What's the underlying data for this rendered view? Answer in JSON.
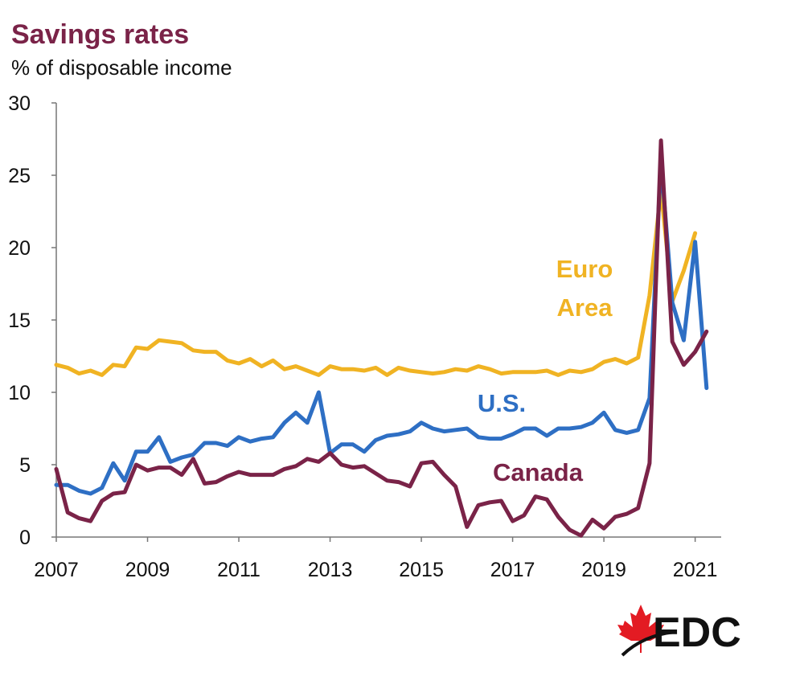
{
  "chart_data": {
    "type": "line",
    "title": "Savings rates",
    "subtitle": "% of disposable income",
    "xlabel": "",
    "ylabel": "% of disposable income",
    "xlim": [
      2007,
      2021.5
    ],
    "ylim": [
      0,
      30
    ],
    "y_ticks": [
      0,
      5,
      10,
      15,
      20,
      25,
      30
    ],
    "x_ticks": [
      2007,
      2009,
      2011,
      2013,
      2015,
      2017,
      2019,
      2021
    ],
    "grid": false,
    "legend": "inline labels",
    "series": [
      {
        "name": "Euro Area",
        "label_lines": [
          "Euro",
          "Area"
        ],
        "color": "#f0b323",
        "points": [
          [
            2007.0,
            11.9
          ],
          [
            2007.25,
            11.7
          ],
          [
            2007.5,
            11.3
          ],
          [
            2007.75,
            11.5
          ],
          [
            2008.0,
            11.2
          ],
          [
            2008.25,
            11.9
          ],
          [
            2008.5,
            11.8
          ],
          [
            2008.75,
            13.1
          ],
          [
            2009.0,
            13.0
          ],
          [
            2009.25,
            13.6
          ],
          [
            2009.5,
            13.5
          ],
          [
            2009.75,
            13.4
          ],
          [
            2010.0,
            12.9
          ],
          [
            2010.25,
            12.8
          ],
          [
            2010.5,
            12.8
          ],
          [
            2010.75,
            12.2
          ],
          [
            2011.0,
            12.0
          ],
          [
            2011.25,
            12.3
          ],
          [
            2011.5,
            11.8
          ],
          [
            2011.75,
            12.2
          ],
          [
            2012.0,
            11.6
          ],
          [
            2012.25,
            11.8
          ],
          [
            2012.5,
            11.5
          ],
          [
            2012.75,
            11.2
          ],
          [
            2013.0,
            11.8
          ],
          [
            2013.25,
            11.6
          ],
          [
            2013.5,
            11.6
          ],
          [
            2013.75,
            11.5
          ],
          [
            2014.0,
            11.7
          ],
          [
            2014.25,
            11.2
          ],
          [
            2014.5,
            11.7
          ],
          [
            2014.75,
            11.5
          ],
          [
            2015.0,
            11.4
          ],
          [
            2015.25,
            11.3
          ],
          [
            2015.5,
            11.4
          ],
          [
            2015.75,
            11.6
          ],
          [
            2016.0,
            11.5
          ],
          [
            2016.25,
            11.8
          ],
          [
            2016.5,
            11.6
          ],
          [
            2016.75,
            11.3
          ],
          [
            2017.0,
            11.4
          ],
          [
            2017.25,
            11.4
          ],
          [
            2017.5,
            11.4
          ],
          [
            2017.75,
            11.5
          ],
          [
            2018.0,
            11.2
          ],
          [
            2018.25,
            11.5
          ],
          [
            2018.5,
            11.4
          ],
          [
            2018.75,
            11.6
          ],
          [
            2019.0,
            12.1
          ],
          [
            2019.25,
            12.3
          ],
          [
            2019.5,
            12.0
          ],
          [
            2019.75,
            12.4
          ],
          [
            2020.0,
            16.7
          ],
          [
            2020.25,
            24.0
          ],
          [
            2020.5,
            16.3
          ],
          [
            2020.75,
            18.4
          ],
          [
            2021.0,
            21.0
          ]
        ]
      },
      {
        "name": "U.S.",
        "label_lines": [
          "U.S."
        ],
        "color": "#2e6fc4",
        "points": [
          [
            2007.0,
            3.6
          ],
          [
            2007.25,
            3.6
          ],
          [
            2007.5,
            3.2
          ],
          [
            2007.75,
            3.0
          ],
          [
            2008.0,
            3.4
          ],
          [
            2008.25,
            5.1
          ],
          [
            2008.5,
            3.9
          ],
          [
            2008.75,
            5.9
          ],
          [
            2009.0,
            5.9
          ],
          [
            2009.25,
            6.9
          ],
          [
            2009.5,
            5.2
          ],
          [
            2009.75,
            5.5
          ],
          [
            2010.0,
            5.7
          ],
          [
            2010.25,
            6.5
          ],
          [
            2010.5,
            6.5
          ],
          [
            2010.75,
            6.3
          ],
          [
            2011.0,
            6.9
          ],
          [
            2011.25,
            6.6
          ],
          [
            2011.5,
            6.8
          ],
          [
            2011.75,
            6.9
          ],
          [
            2012.0,
            7.9
          ],
          [
            2012.25,
            8.6
          ],
          [
            2012.5,
            7.9
          ],
          [
            2012.75,
            10.0
          ],
          [
            2013.0,
            5.8
          ],
          [
            2013.25,
            6.4
          ],
          [
            2013.5,
            6.4
          ],
          [
            2013.75,
            5.9
          ],
          [
            2014.0,
            6.7
          ],
          [
            2014.25,
            7.0
          ],
          [
            2014.5,
            7.1
          ],
          [
            2014.75,
            7.3
          ],
          [
            2015.0,
            7.9
          ],
          [
            2015.25,
            7.5
          ],
          [
            2015.5,
            7.3
          ],
          [
            2015.75,
            7.4
          ],
          [
            2016.0,
            7.5
          ],
          [
            2016.25,
            6.9
          ],
          [
            2016.5,
            6.8
          ],
          [
            2016.75,
            6.8
          ],
          [
            2017.0,
            7.1
          ],
          [
            2017.25,
            7.5
          ],
          [
            2017.5,
            7.5
          ],
          [
            2017.75,
            7.0
          ],
          [
            2018.0,
            7.5
          ],
          [
            2018.25,
            7.5
          ],
          [
            2018.5,
            7.6
          ],
          [
            2018.75,
            7.9
          ],
          [
            2019.0,
            8.6
          ],
          [
            2019.25,
            7.4
          ],
          [
            2019.5,
            7.2
          ],
          [
            2019.75,
            7.4
          ],
          [
            2020.0,
            9.6
          ],
          [
            2020.25,
            26.0
          ],
          [
            2020.5,
            16.2
          ],
          [
            2020.75,
            13.6
          ],
          [
            2021.0,
            20.4
          ],
          [
            2021.25,
            10.3
          ]
        ]
      },
      {
        "name": "Canada",
        "label_lines": [
          "Canada"
        ],
        "color": "#7a2348",
        "points": [
          [
            2007.0,
            4.7
          ],
          [
            2007.25,
            1.7
          ],
          [
            2007.5,
            1.3
          ],
          [
            2007.75,
            1.1
          ],
          [
            2008.0,
            2.5
          ],
          [
            2008.25,
            3.0
          ],
          [
            2008.5,
            3.1
          ],
          [
            2008.75,
            5.0
          ],
          [
            2009.0,
            4.6
          ],
          [
            2009.25,
            4.8
          ],
          [
            2009.5,
            4.8
          ],
          [
            2009.75,
            4.3
          ],
          [
            2010.0,
            5.4
          ],
          [
            2010.25,
            3.7
          ],
          [
            2010.5,
            3.8
          ],
          [
            2010.75,
            4.2
          ],
          [
            2011.0,
            4.5
          ],
          [
            2011.25,
            4.3
          ],
          [
            2011.5,
            4.3
          ],
          [
            2011.75,
            4.3
          ],
          [
            2012.0,
            4.7
          ],
          [
            2012.25,
            4.9
          ],
          [
            2012.5,
            5.4
          ],
          [
            2012.75,
            5.2
          ],
          [
            2013.0,
            5.8
          ],
          [
            2013.25,
            5.0
          ],
          [
            2013.5,
            4.8
          ],
          [
            2013.75,
            4.9
          ],
          [
            2014.0,
            4.4
          ],
          [
            2014.25,
            3.9
          ],
          [
            2014.5,
            3.8
          ],
          [
            2014.75,
            3.5
          ],
          [
            2015.0,
            5.1
          ],
          [
            2015.25,
            5.2
          ],
          [
            2015.5,
            4.3
          ],
          [
            2015.75,
            3.5
          ],
          [
            2016.0,
            0.7
          ],
          [
            2016.25,
            2.2
          ],
          [
            2016.5,
            2.4
          ],
          [
            2016.75,
            2.5
          ],
          [
            2017.0,
            1.1
          ],
          [
            2017.25,
            1.5
          ],
          [
            2017.5,
            2.8
          ],
          [
            2017.75,
            2.6
          ],
          [
            2018.0,
            1.4
          ],
          [
            2018.25,
            0.5
          ],
          [
            2018.5,
            0.1
          ],
          [
            2018.75,
            1.2
          ],
          [
            2019.0,
            0.6
          ],
          [
            2019.25,
            1.4
          ],
          [
            2019.5,
            1.6
          ],
          [
            2019.75,
            2.0
          ],
          [
            2020.0,
            5.1
          ],
          [
            2020.25,
            27.4
          ],
          [
            2020.5,
            13.5
          ],
          [
            2020.75,
            11.9
          ],
          [
            2021.0,
            12.8
          ],
          [
            2021.25,
            14.2
          ]
        ]
      }
    ]
  },
  "logo": {
    "text": "EDC",
    "leaf_color": "#e31b23"
  }
}
